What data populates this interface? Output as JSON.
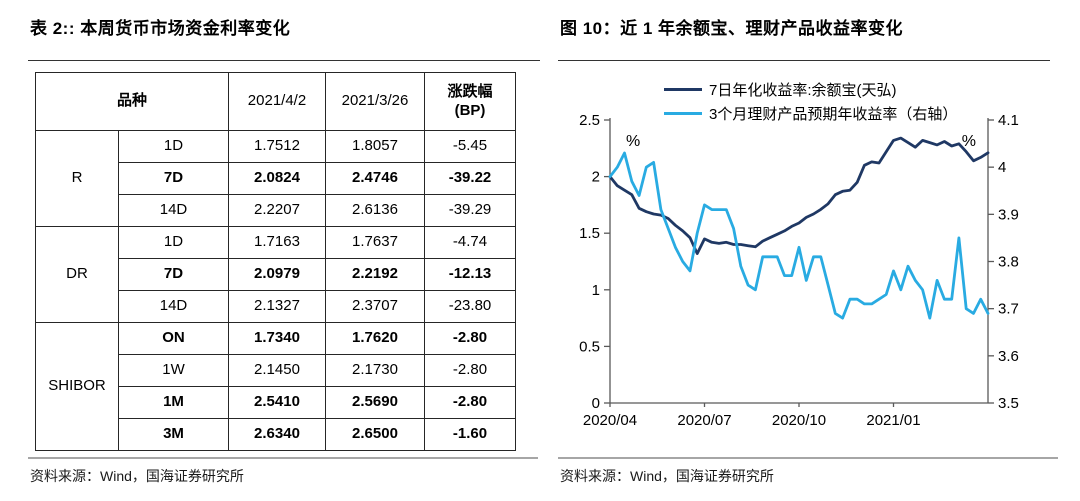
{
  "left_panel": {
    "title": "表 2:: 本周货币市场资金利率变化",
    "source": "资料来源：Wind，国海证券研究所",
    "table": {
      "header": {
        "variety": "品种",
        "date1": "2021/4/2",
        "date2": "2021/3/26",
        "change_line1": "涨跌幅",
        "change_line2": "(BP)"
      },
      "groups": [
        {
          "name": "R",
          "rows": [
            {
              "tenor": "1D",
              "v1": "1.7512",
              "v2": "1.8057",
              "chg": "-5.45",
              "bold": false
            },
            {
              "tenor": "7D",
              "v1": "2.0824",
              "v2": "2.4746",
              "chg": "-39.22",
              "bold": true
            },
            {
              "tenor": "14D",
              "v1": "2.2207",
              "v2": "2.6136",
              "chg": "-39.29",
              "bold": false
            }
          ]
        },
        {
          "name": "DR",
          "rows": [
            {
              "tenor": "1D",
              "v1": "1.7163",
              "v2": "1.7637",
              "chg": "-4.74",
              "bold": false
            },
            {
              "tenor": "7D",
              "v1": "2.0979",
              "v2": "2.2192",
              "chg": "-12.13",
              "bold": true
            },
            {
              "tenor": "14D",
              "v1": "2.1327",
              "v2": "2.3707",
              "chg": "-23.80",
              "bold": false
            }
          ]
        },
        {
          "name": "SHIBOR",
          "rows": [
            {
              "tenor": "ON",
              "v1": "1.7340",
              "v2": "1.7620",
              "chg": "-2.80",
              "bold": true
            },
            {
              "tenor": "1W",
              "v1": "2.1450",
              "v2": "2.1730",
              "chg": "-2.80",
              "bold": false
            },
            {
              "tenor": "1M",
              "v1": "2.5410",
              "v2": "2.5690",
              "chg": "-2.80",
              "bold": true
            },
            {
              "tenor": "3M",
              "v1": "2.6340",
              "v2": "2.6500",
              "chg": "-1.60",
              "bold": true
            }
          ]
        }
      ]
    }
  },
  "right_panel": {
    "title": "图 10：近 1 年余额宝、理财产品收益率变化",
    "source": "资料来源：Wind，国海证券研究所"
  },
  "chart_data": {
    "type": "line",
    "title": "近 1 年余额宝、理财产品收益率变化",
    "x_tick_labels": [
      "2020/04",
      "2020/07",
      "2020/10",
      "2021/01"
    ],
    "x_months_span": 12,
    "left_axis": {
      "min": 0,
      "max": 2.5,
      "unit": "%",
      "tick_labels": [
        "0",
        "0.5",
        "1",
        "1.5",
        "2",
        "2.5"
      ]
    },
    "right_axis": {
      "min": 3.5,
      "max": 4.1,
      "unit": "%",
      "tick_labels": [
        "3.5",
        "3.6",
        "3.7",
        "3.8",
        "3.9",
        "4",
        "4.1"
      ]
    },
    "legend_position": "top-center",
    "grid": false,
    "series": [
      {
        "name": "7日年化收益率:余额宝(天弘)",
        "axis": "left",
        "color": "#1f3864",
        "values": [
          2.0,
          1.92,
          1.88,
          1.84,
          1.72,
          1.69,
          1.67,
          1.66,
          1.63,
          1.57,
          1.52,
          1.46,
          1.32,
          1.45,
          1.42,
          1.41,
          1.42,
          1.4,
          1.4,
          1.39,
          1.38,
          1.43,
          1.46,
          1.49,
          1.52,
          1.56,
          1.59,
          1.64,
          1.67,
          1.71,
          1.76,
          1.84,
          1.87,
          1.88,
          1.95,
          2.1,
          2.13,
          2.12,
          2.22,
          2.32,
          2.34,
          2.3,
          2.26,
          2.32,
          2.3,
          2.28,
          2.31,
          2.27,
          2.29,
          2.22,
          2.14,
          2.17,
          2.21
        ]
      },
      {
        "name": "3个月理财产品预期年收益率（右轴）",
        "axis": "right",
        "color": "#29abe2",
        "values": [
          3.98,
          4.0,
          4.03,
          3.97,
          3.94,
          4.0,
          4.01,
          3.91,
          3.87,
          3.83,
          3.8,
          3.78,
          3.86,
          3.92,
          3.91,
          3.91,
          3.91,
          3.87,
          3.79,
          3.75,
          3.74,
          3.81,
          3.81,
          3.81,
          3.77,
          3.77,
          3.83,
          3.76,
          3.81,
          3.81,
          3.75,
          3.69,
          3.68,
          3.72,
          3.72,
          3.71,
          3.71,
          3.72,
          3.73,
          3.78,
          3.74,
          3.79,
          3.76,
          3.74,
          3.68,
          3.76,
          3.72,
          3.72,
          3.85,
          3.7,
          3.69,
          3.72,
          3.69
        ]
      }
    ]
  }
}
